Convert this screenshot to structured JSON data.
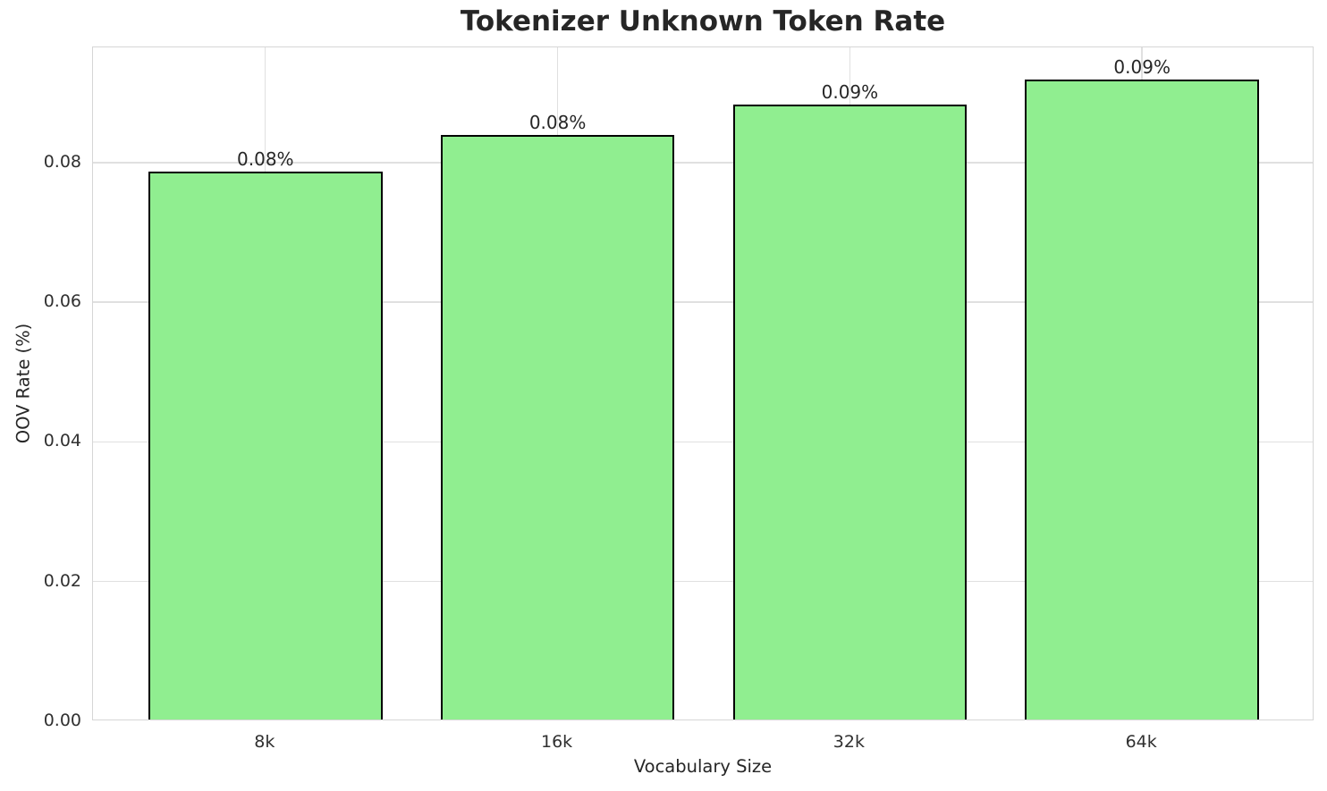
{
  "chart_data": {
    "type": "bar",
    "title": "Tokenizer Unknown Token Rate",
    "xlabel": "Vocabulary Size",
    "ylabel": "OOV Rate (%)",
    "categories": [
      "8k",
      "16k",
      "32k",
      "64k"
    ],
    "values": [
      0.0785,
      0.0837,
      0.0881,
      0.0917
    ],
    "bar_labels": [
      "0.08%",
      "0.08%",
      "0.09%",
      "0.09%"
    ],
    "y_tick_labels": [
      "0.00",
      "0.02",
      "0.04",
      "0.06",
      "0.08"
    ],
    "y_tick_values": [
      0.0,
      0.02,
      0.04,
      0.06,
      0.08
    ],
    "ylim": [
      0,
      0.0965
    ],
    "grid": true,
    "legend_position": "none",
    "colors": {
      "bar_fill": "#90EE90",
      "bar_edge": "#000000",
      "grid": "#e0e0e0",
      "spine": "#d6d6d6",
      "text": "#262626",
      "background": "#ffffff"
    }
  }
}
